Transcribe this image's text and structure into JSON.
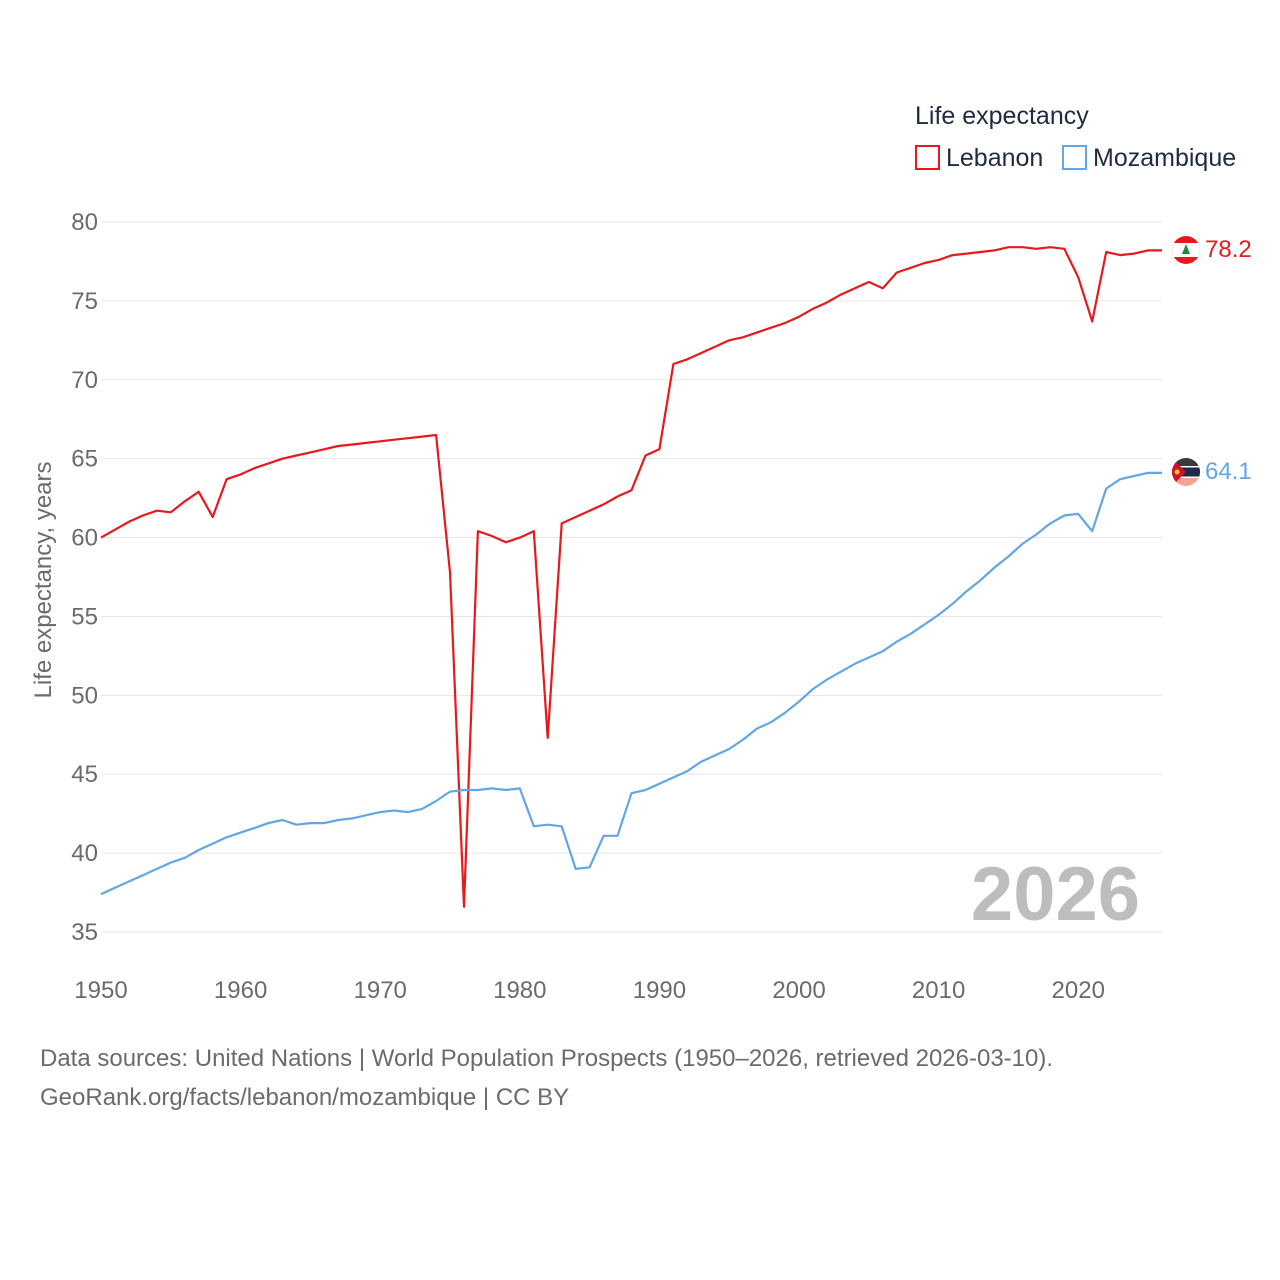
{
  "chart_data": {
    "type": "line",
    "legend_title": "Life expectancy",
    "ylabel": "Life expectancy, years",
    "xlabel": "",
    "xlim": [
      1950,
      2026
    ],
    "ylim": [
      35,
      80
    ],
    "yticks": [
      35,
      40,
      45,
      50,
      55,
      60,
      65,
      70,
      75,
      80
    ],
    "xticks": [
      1950,
      1960,
      1970,
      1980,
      1990,
      2000,
      2010,
      2020
    ],
    "watermark_year": "2026",
    "x": [
      1950,
      1951,
      1952,
      1953,
      1954,
      1955,
      1956,
      1957,
      1958,
      1959,
      1960,
      1961,
      1962,
      1963,
      1964,
      1965,
      1966,
      1967,
      1968,
      1969,
      1970,
      1971,
      1972,
      1973,
      1974,
      1975,
      1976,
      1977,
      1978,
      1979,
      1980,
      1981,
      1982,
      1983,
      1984,
      1985,
      1986,
      1987,
      1988,
      1989,
      1990,
      1991,
      1992,
      1993,
      1994,
      1995,
      1996,
      1997,
      1998,
      1999,
      2000,
      2001,
      2002,
      2003,
      2004,
      2005,
      2006,
      2007,
      2008,
      2009,
      2010,
      2011,
      2012,
      2013,
      2014,
      2015,
      2016,
      2017,
      2018,
      2019,
      2020,
      2021,
      2022,
      2023,
      2024,
      2025,
      2026
    ],
    "series": [
      {
        "name": "Lebanon",
        "color": "#e8191d",
        "end_label": "78.2",
        "values": [
          60.0,
          60.5,
          61.0,
          61.4,
          61.7,
          61.6,
          62.3,
          62.9,
          61.3,
          63.7,
          64.0,
          64.4,
          64.7,
          65.0,
          65.2,
          65.4,
          65.6,
          65.8,
          65.9,
          66.0,
          66.1,
          66.2,
          66.3,
          66.4,
          66.5,
          57.8,
          36.6,
          60.4,
          60.1,
          59.7,
          60.0,
          60.4,
          47.3,
          60.9,
          61.3,
          61.7,
          62.1,
          62.6,
          63.0,
          65.2,
          65.6,
          71.0,
          71.3,
          71.7,
          72.1,
          72.5,
          72.7,
          73.0,
          73.3,
          73.6,
          74.0,
          74.5,
          74.9,
          75.4,
          75.8,
          76.2,
          75.8,
          76.8,
          77.1,
          77.4,
          77.6,
          77.9,
          78.0,
          78.1,
          78.2,
          78.4,
          78.4,
          78.3,
          78.4,
          78.3,
          76.5,
          73.7,
          78.1,
          77.9,
          78.0,
          78.2,
          78.2
        ]
      },
      {
        "name": "Mozambique",
        "color": "#63a6e6",
        "end_label": "64.1",
        "values": [
          37.4,
          37.8,
          38.2,
          38.6,
          39.0,
          39.4,
          39.7,
          40.2,
          40.6,
          41.0,
          41.3,
          41.6,
          41.9,
          42.1,
          41.8,
          41.9,
          41.9,
          42.1,
          42.2,
          42.4,
          42.6,
          42.7,
          42.6,
          42.8,
          43.3,
          43.9,
          44.0,
          44.0,
          44.1,
          44.0,
          44.1,
          41.7,
          41.8,
          41.7,
          39.0,
          39.1,
          41.1,
          41.1,
          43.8,
          44.0,
          44.4,
          44.8,
          45.2,
          45.8,
          46.2,
          46.6,
          47.2,
          47.9,
          48.3,
          48.9,
          49.6,
          50.4,
          51.0,
          51.5,
          52.0,
          52.4,
          52.8,
          53.4,
          53.9,
          54.5,
          55.1,
          55.8,
          56.6,
          57.3,
          58.1,
          58.8,
          59.6,
          60.2,
          60.9,
          61.4,
          61.5,
          60.4,
          63.1,
          63.7,
          63.9,
          64.1,
          64.1
        ]
      }
    ]
  },
  "source": {
    "line1": "Data sources: United Nations | World Population Prospects (1950–2026, retrieved 2026-03-10).",
    "line2": "GeoRank.org/facts/lebanon/mozambique | CC BY"
  }
}
